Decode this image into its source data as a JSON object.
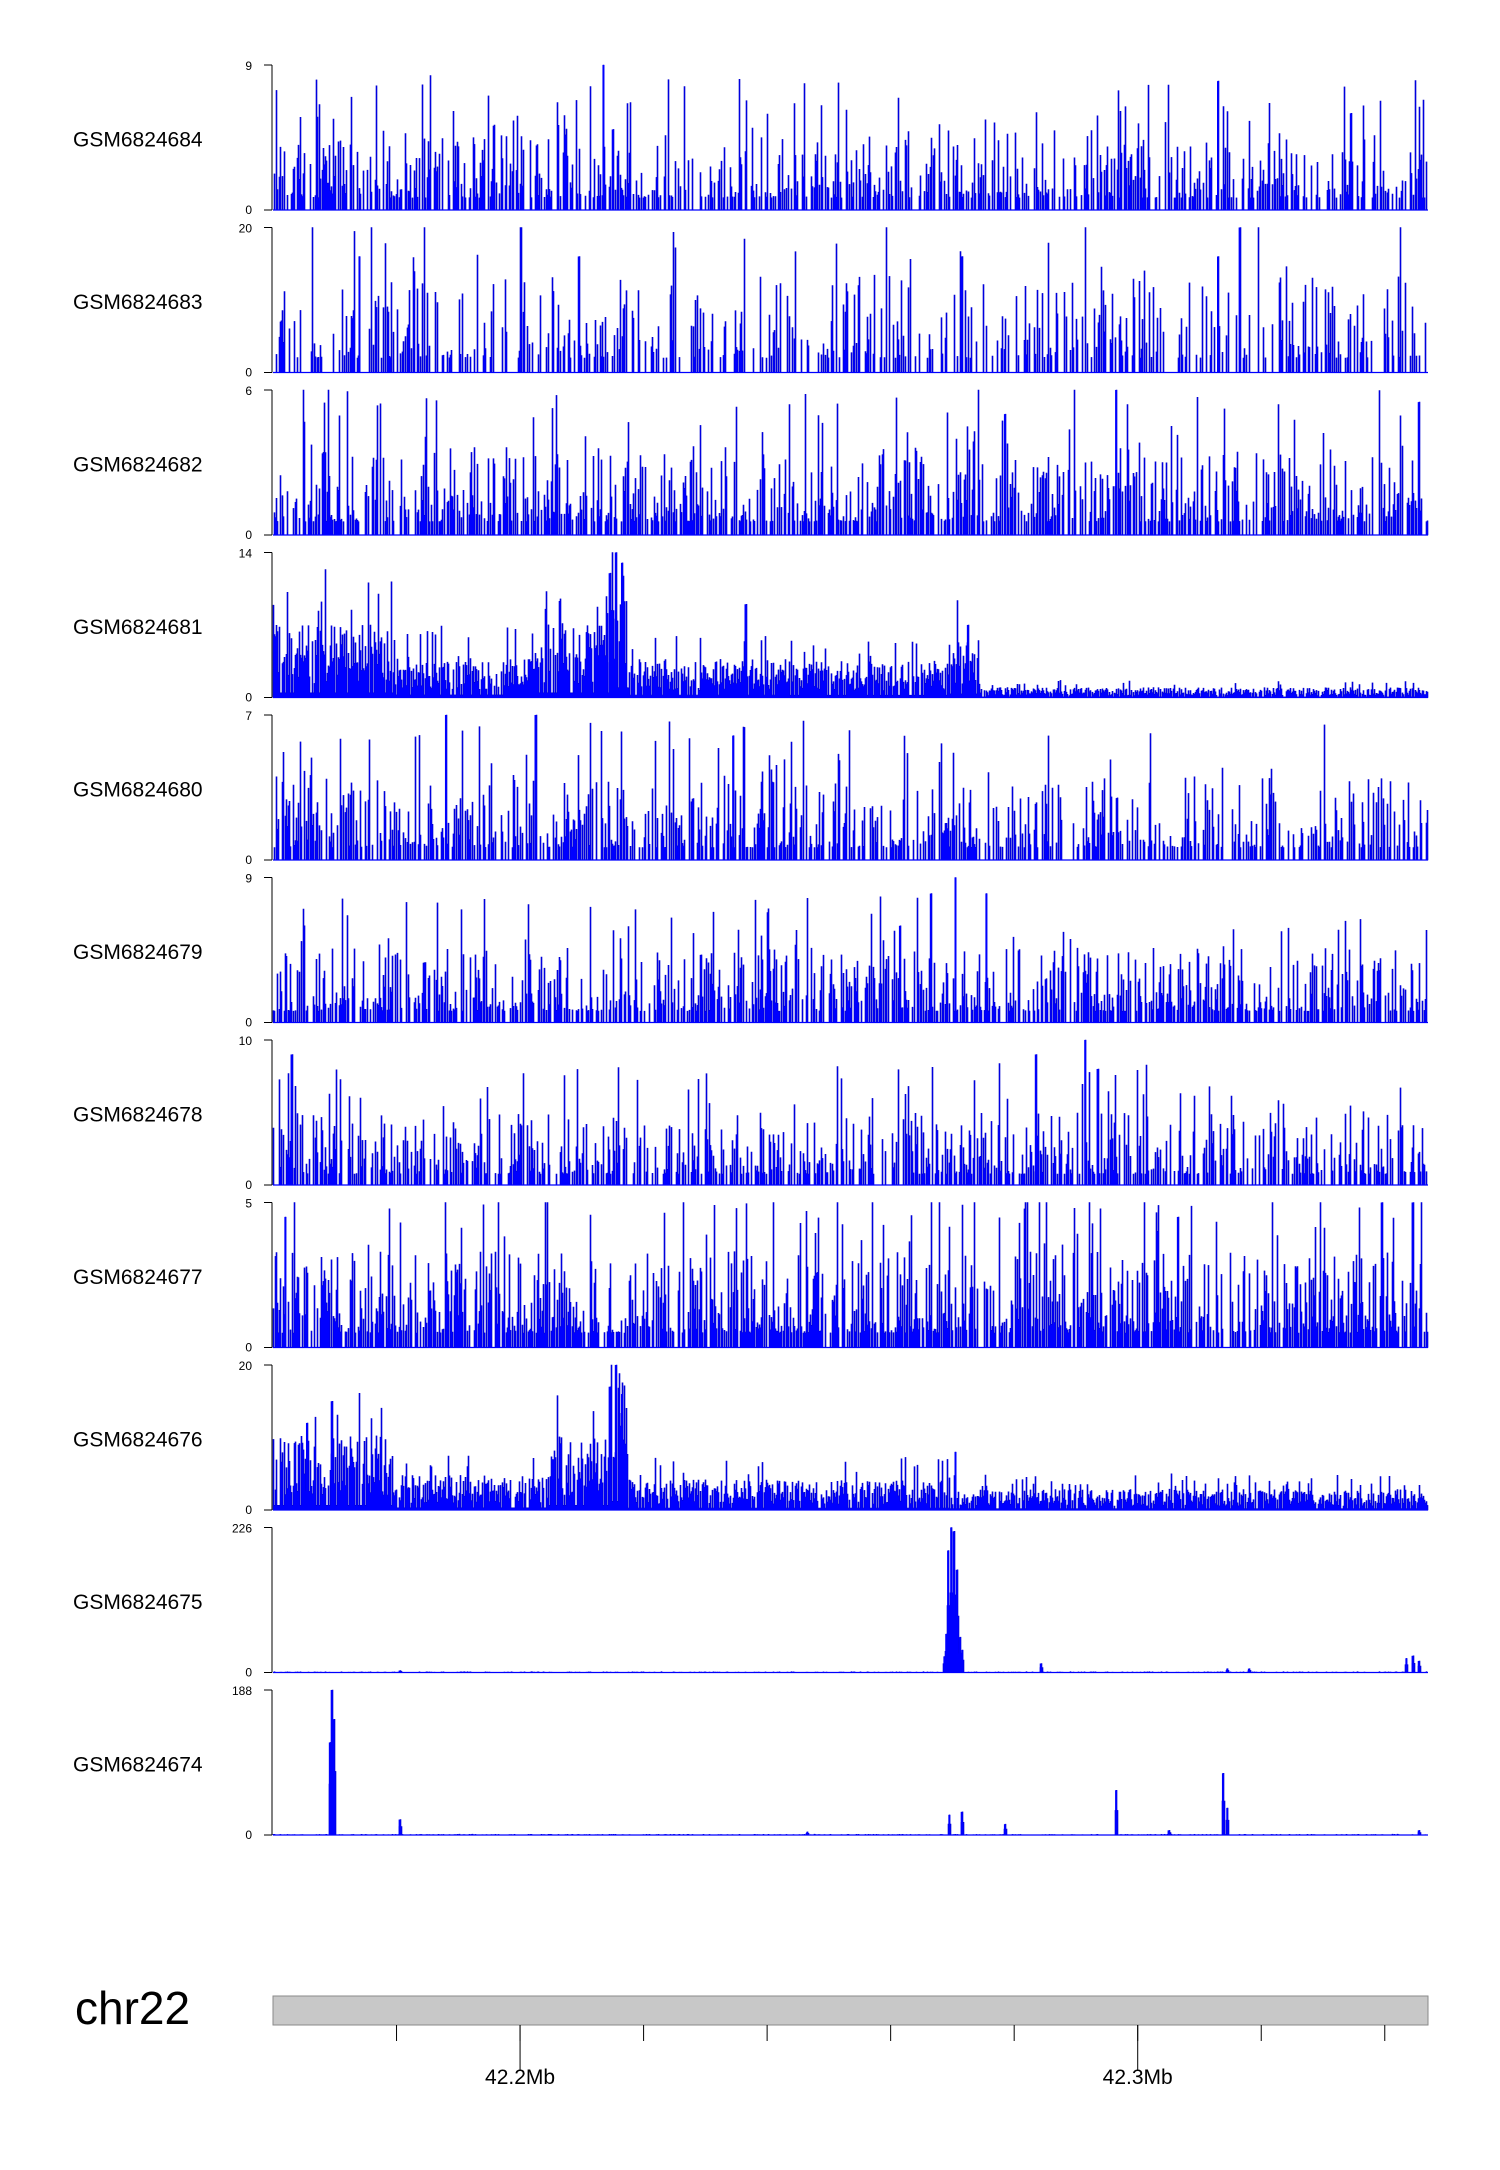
{
  "figure": {
    "track_color": "#0000ff",
    "track_stroke": "#0000cc",
    "ideogram_fill": "#c8c8c8",
    "chromosome_label": "chr22"
  },
  "chart_data": {
    "type": "area",
    "chromosome": "chr22",
    "x_unit": "Mb",
    "xlim": [
      42.16,
      42.347
    ],
    "x_ticks": [
      42.18,
      42.2,
      42.22,
      42.24,
      42.26,
      42.28,
      42.3,
      42.32,
      42.34
    ],
    "x_tick_labels": [
      {
        "x": 42.2,
        "label": "42.2Mb"
      },
      {
        "x": 42.3,
        "label": "42.3Mb"
      }
    ],
    "series": [
      {
        "name": "GSM6824684",
        "ylim": [
          0,
          9
        ],
        "y_max_label": "9",
        "y_min_label": "0",
        "profile": "noise",
        "density": 0.55,
        "typical": 3.0,
        "seed": 11,
        "peaks": [
          {
            "x": 42.2135,
            "y": 9
          },
          {
            "x": 42.313,
            "y": 8
          },
          {
            "x": 42.215,
            "y": 5
          },
          {
            "x": 42.3345,
            "y": 6
          }
        ]
      },
      {
        "name": "GSM6824683",
        "ylim": [
          0,
          20
        ],
        "y_max_label": "20",
        "y_min_label": "0",
        "profile": "sparse",
        "density": 0.35,
        "typical": 8.0,
        "seed": 23,
        "peaks": [
          {
            "x": 42.3165,
            "y": 20
          },
          {
            "x": 42.174,
            "y": 16
          },
          {
            "x": 42.2095,
            "y": 16
          },
          {
            "x": 42.2715,
            "y": 16
          },
          {
            "x": 42.313,
            "y": 16
          }
        ]
      },
      {
        "name": "GSM6824682",
        "ylim": [
          0,
          6
        ],
        "y_max_label": "6",
        "y_min_label": "0",
        "profile": "noise",
        "density": 0.6,
        "typical": 2.2,
        "seed": 37,
        "peaks": [
          {
            "x": 42.2965,
            "y": 6
          },
          {
            "x": 42.2785,
            "y": 5
          },
          {
            "x": 42.3455,
            "y": 5.5
          }
        ]
      },
      {
        "name": "GSM6824681",
        "ylim": [
          0,
          14
        ],
        "y_max_label": "14",
        "y_min_label": "0",
        "profile": "regional",
        "seed": 41,
        "segments": [
          {
            "start": 42.16,
            "end": 42.1795,
            "base": 4.5
          },
          {
            "start": 42.1795,
            "end": 42.2025,
            "base": 2.5
          },
          {
            "start": 42.2025,
            "end": 42.2145,
            "base": 4.5
          },
          {
            "start": 42.2145,
            "end": 42.2175,
            "base": 9.5
          },
          {
            "start": 42.2175,
            "end": 42.2435,
            "base": 2.3
          },
          {
            "start": 42.2435,
            "end": 42.2695,
            "base": 2.2
          },
          {
            "start": 42.2695,
            "end": 42.2745,
            "base": 3.5
          },
          {
            "start": 42.2745,
            "end": 42.347,
            "base": 0.6
          }
        ],
        "peaks": [
          {
            "x": 42.2155,
            "y": 14
          },
          {
            "x": 42.2165,
            "y": 13
          },
          {
            "x": 42.2145,
            "y": 12
          },
          {
            "x": 42.2365,
            "y": 9
          },
          {
            "x": 42.2725,
            "y": 7
          }
        ]
      },
      {
        "name": "GSM6824680",
        "ylim": [
          0,
          7
        ],
        "y_max_label": "7",
        "y_min_label": "0",
        "profile": "noise",
        "density": 0.55,
        "typical": 2.4,
        "seed": 53,
        "peaks": [
          {
            "x": 42.188,
            "y": 7
          },
          {
            "x": 42.2025,
            "y": 7
          },
          {
            "x": 42.2345,
            "y": 6
          }
        ]
      },
      {
        "name": "GSM6824679",
        "ylim": [
          0,
          9
        ],
        "y_max_label": "9",
        "y_min_label": "0",
        "profile": "noise",
        "density": 0.55,
        "typical": 2.8,
        "seed": 67,
        "peaks": [
          {
            "x": 42.2705,
            "y": 9
          },
          {
            "x": 42.2665,
            "y": 8
          },
          {
            "x": 42.2755,
            "y": 8
          },
          {
            "x": 42.2615,
            "y": 6
          }
        ]
      },
      {
        "name": "GSM6824678",
        "ylim": [
          0,
          10
        ],
        "y_max_label": "10",
        "y_min_label": "0",
        "profile": "noise",
        "density": 0.55,
        "typical": 3.0,
        "seed": 71,
        "peaks": [
          {
            "x": 42.2915,
            "y": 10
          },
          {
            "x": 42.2835,
            "y": 9
          },
          {
            "x": 42.2935,
            "y": 8
          },
          {
            "x": 42.163,
            "y": 9
          }
        ]
      },
      {
        "name": "GSM6824677",
        "ylim": [
          0,
          5
        ],
        "y_max_label": "5",
        "y_min_label": "0",
        "profile": "noise",
        "density": 0.7,
        "typical": 2.0,
        "seed": 83,
        "peaks": [
          {
            "x": 42.3395,
            "y": 5
          },
          {
            "x": 42.3445,
            "y": 5
          },
          {
            "x": 42.162,
            "y": 4.5
          },
          {
            "x": 42.3065,
            "y": 4.5
          }
        ]
      },
      {
        "name": "GSM6824676",
        "ylim": [
          0,
          20
        ],
        "y_max_label": "20",
        "y_min_label": "0",
        "profile": "regional",
        "seed": 97,
        "segments": [
          {
            "start": 42.16,
            "end": 42.1795,
            "base": 6.5
          },
          {
            "start": 42.1795,
            "end": 42.2045,
            "base": 3.0
          },
          {
            "start": 42.2045,
            "end": 42.2145,
            "base": 6.5
          },
          {
            "start": 42.2145,
            "end": 42.2175,
            "base": 12.0
          },
          {
            "start": 42.2175,
            "end": 42.2695,
            "base": 2.6
          },
          {
            "start": 42.2695,
            "end": 42.347,
            "base": 1.8
          }
        ],
        "peaks": [
          {
            "x": 42.2155,
            "y": 20
          },
          {
            "x": 42.2145,
            "y": 17
          },
          {
            "x": 42.2165,
            "y": 16
          },
          {
            "x": 42.1695,
            "y": 15
          },
          {
            "x": 42.1655,
            "y": 12
          },
          {
            "x": 42.2705,
            "y": 8
          }
        ]
      },
      {
        "name": "GSM6824675",
        "ylim": [
          0,
          226
        ],
        "y_max_label": "226",
        "y_min_label": "0",
        "profile": "quiet",
        "typical": 1.2,
        "seed": 101,
        "peaks": [
          {
            "x": 42.2698,
            "y": 226
          },
          {
            "x": 42.2702,
            "y": 220
          },
          {
            "x": 42.2693,
            "y": 190
          },
          {
            "x": 42.2707,
            "y": 160
          },
          {
            "x": 42.269,
            "y": 60
          },
          {
            "x": 42.2712,
            "y": 55
          },
          {
            "x": 42.2716,
            "y": 35
          },
          {
            "x": 42.2687,
            "y": 25
          },
          {
            "x": 42.2843,
            "y": 14
          },
          {
            "x": 42.3145,
            "y": 6
          },
          {
            "x": 42.318,
            "y": 6
          },
          {
            "x": 42.3435,
            "y": 22
          },
          {
            "x": 42.3445,
            "y": 26
          },
          {
            "x": 42.3455,
            "y": 18
          },
          {
            "x": 42.1805,
            "y": 3
          }
        ]
      },
      {
        "name": "GSM6824674",
        "ylim": [
          0,
          188
        ],
        "y_max_label": "188",
        "y_min_label": "0",
        "profile": "quiet",
        "typical": 1.0,
        "seed": 113,
        "peaks": [
          {
            "x": 42.1695,
            "y": 188
          },
          {
            "x": 42.1698,
            "y": 150
          },
          {
            "x": 42.1692,
            "y": 120
          },
          {
            "x": 42.1805,
            "y": 20
          },
          {
            "x": 42.2695,
            "y": 26
          },
          {
            "x": 42.2715,
            "y": 30
          },
          {
            "x": 42.2785,
            "y": 14
          },
          {
            "x": 42.2965,
            "y": 58
          },
          {
            "x": 42.3138,
            "y": 80
          },
          {
            "x": 42.3145,
            "y": 35
          },
          {
            "x": 42.305,
            "y": 6
          },
          {
            "x": 42.2465,
            "y": 4
          },
          {
            "x": 42.3455,
            "y": 6
          }
        ]
      }
    ]
  }
}
